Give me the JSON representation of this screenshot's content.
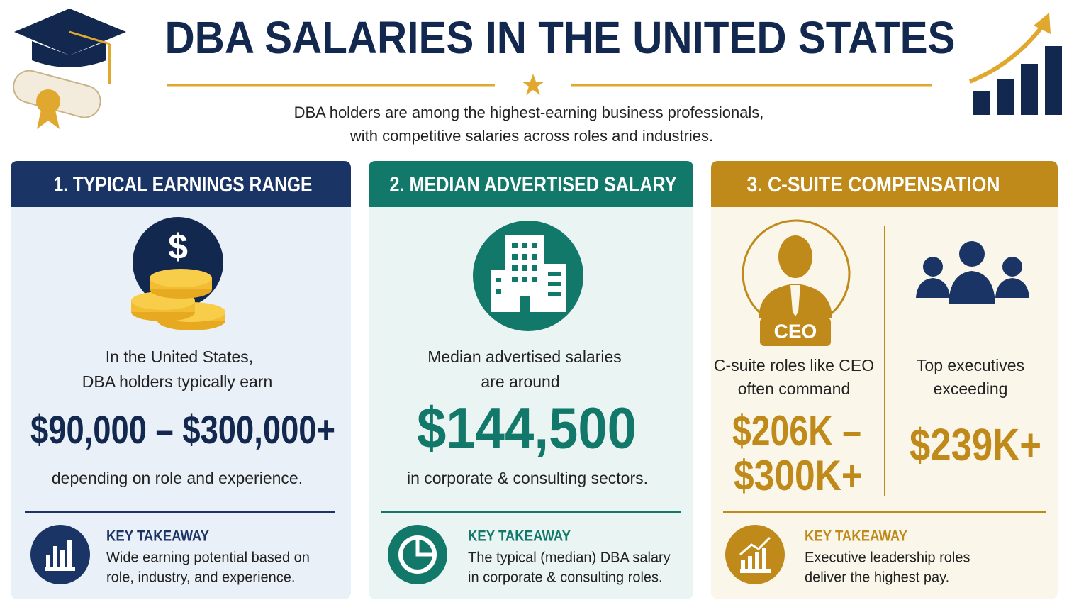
{
  "header": {
    "title": "DBA SALARIES IN THE UNITED STATES",
    "subtitle": [
      "DBA holders are among the highest-earning business professionals,",
      "with competitive salaries across roles and industries."
    ]
  },
  "cards": [
    {
      "heading": "1. TYPICAL EARNINGS RANGE",
      "intro": [
        "In the United States,",
        "DBA holders typically earn"
      ],
      "figure": "$90,000 – $300,000+",
      "note": "depending on role and experience.",
      "takeaway_label": "KEY TAKEAWAY",
      "takeaway": [
        "Wide earning potential based on",
        "role, industry, and experience."
      ]
    },
    {
      "heading": "2. MEDIAN ADVERTISED SALARY",
      "intro": [
        "Median advertised salaries",
        "are around"
      ],
      "figure": "$144,500",
      "note": "in corporate & consulting sectors.",
      "takeaway_label": "KEY TAKEAWAY",
      "takeaway": [
        "The typical (median) DBA salary",
        "in corporate & consulting roles."
      ]
    },
    {
      "heading": "3. C-SUITE COMPENSATION",
      "badge": "CEO",
      "columns": [
        {
          "intro": [
            "C-suite roles like CEO",
            "often command"
          ],
          "figure": [
            "$206K –",
            "$300K+"
          ]
        },
        {
          "intro": [
            "Top executives",
            "exceeding"
          ],
          "figure": [
            "$239K+"
          ]
        }
      ],
      "takeaway_label": "KEY TAKEAWAY",
      "takeaway": [
        "Executive leadership roles",
        "deliver the highest pay."
      ]
    }
  ]
}
